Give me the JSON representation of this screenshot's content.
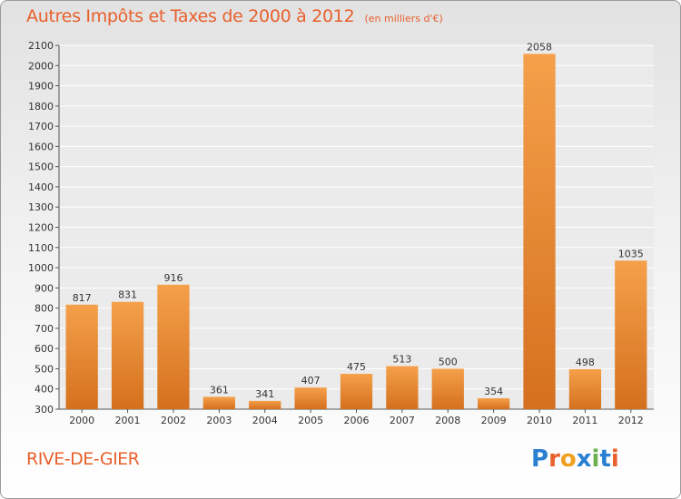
{
  "header": {
    "title": "Autres Impôts et Taxes de 2000 à 2012",
    "subtitle": "(en milliers d'€)"
  },
  "footer": {
    "city": "RIVE-DE-GIER",
    "logo_text": "Proxiti",
    "logo_colors": [
      "#2a7fd1",
      "#e8602c",
      "#f0a020",
      "#2a7fd1",
      "#6ab04c",
      "#2a7fd1",
      "#e8602c"
    ]
  },
  "colors": {
    "bar_light": "#f5a04a",
    "bar_dark": "#d4701e",
    "title": "#e8602c"
  },
  "chart_data": {
    "type": "bar",
    "title": "Autres Impôts et Taxes de 2000 à 2012",
    "subtitle": "(en milliers d'€)",
    "categories": [
      "2000",
      "2001",
      "2002",
      "2003",
      "2004",
      "2005",
      "2006",
      "2007",
      "2008",
      "2009",
      "2010",
      "2011",
      "2012"
    ],
    "values": [
      817,
      831,
      916,
      361,
      341,
      407,
      475,
      513,
      500,
      354,
      2058,
      498,
      1035
    ],
    "ylim": [
      300,
      2100
    ],
    "yticks": [
      300,
      400,
      500,
      600,
      700,
      800,
      900,
      1000,
      1100,
      1200,
      1300,
      1400,
      1500,
      1600,
      1700,
      1800,
      1900,
      2000,
      2100
    ],
    "grid": true,
    "legend": "none"
  }
}
